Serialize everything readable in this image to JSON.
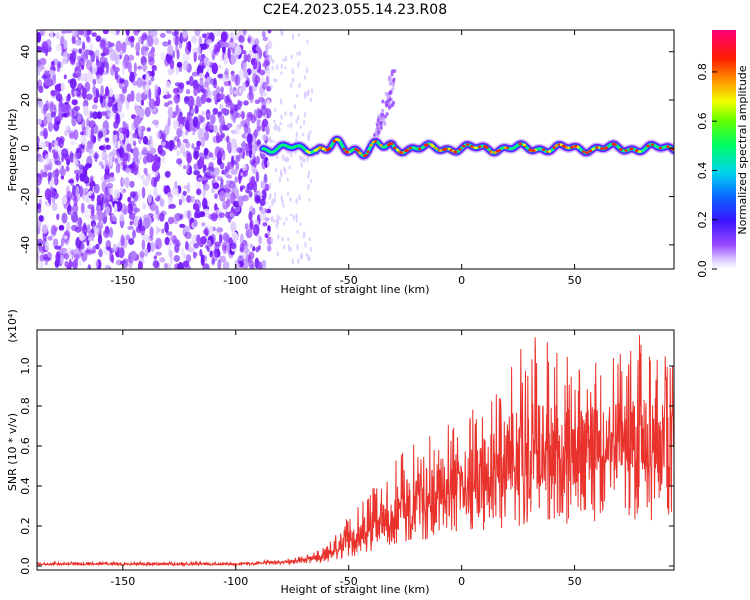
{
  "figure": {
    "title": "C2E4.2023.055.14.23.R08"
  },
  "chart_data": [
    {
      "type": "heatmap",
      "xlabel": "Height of straight line (km)",
      "ylabel": "Frequency (Hz)",
      "xlim": [
        -188,
        94
      ],
      "ylim": [
        -50,
        49
      ],
      "x_ticks": [
        -150,
        -100,
        -50,
        0,
        50
      ],
      "y_ticks": [
        -40,
        -20,
        0,
        20,
        40
      ],
      "colorbar": {
        "label": "Normalized spectral amplitude",
        "range": [
          0,
          0.97
        ],
        "ticks": [
          0.0,
          0.2,
          0.4,
          0.6,
          0.8
        ],
        "colormap": "rainbow (white → violet → blue → cyan → green → yellow → red → magenta)"
      },
      "features": {
        "noise_region_x": [
          -188,
          -85
        ],
        "signal_trace_start_x": -88,
        "signal_trace_frequency_hz": 0,
        "weak_branch_x": [
          -38,
          -30
        ],
        "weak_branch_frequency_hz": [
          5,
          35
        ]
      }
    },
    {
      "type": "line",
      "xlabel": "Height of straight line (km)",
      "ylabel": "SNR (10 * v/v)",
      "multiplier": "(x10⁴)",
      "xlim": [
        -188,
        94
      ],
      "ylim": [
        -0.02,
        1.18
      ],
      "x_ticks": [
        -150,
        -100,
        -50,
        0,
        50
      ],
      "y_ticks": [
        0.0,
        0.2,
        0.4,
        0.6,
        0.8,
        1.0
      ],
      "line_color": "#e8322b",
      "series": [
        {
          "x": [
            -188,
            -150,
            -100,
            -80,
            -70,
            -60,
            -50,
            -40,
            -30,
            -20,
            -10,
            0,
            10,
            20,
            30,
            40,
            50,
            60,
            70,
            80,
            94
          ],
          "values": [
            0.01,
            0.01,
            0.01,
            0.02,
            0.03,
            0.05,
            0.12,
            0.2,
            0.28,
            0.34,
            0.4,
            0.46,
            0.5,
            0.54,
            0.58,
            0.6,
            0.6,
            0.62,
            0.64,
            0.64,
            0.62
          ],
          "peak_values": [
            0.02,
            0.02,
            0.02,
            0.03,
            0.05,
            0.1,
            0.25,
            0.38,
            0.55,
            0.62,
            0.7,
            0.75,
            0.85,
            1.0,
            1.15,
            1.13,
            1.05,
            1.02,
            1.1,
            1.18,
            1.0
          ]
        }
      ]
    }
  ]
}
